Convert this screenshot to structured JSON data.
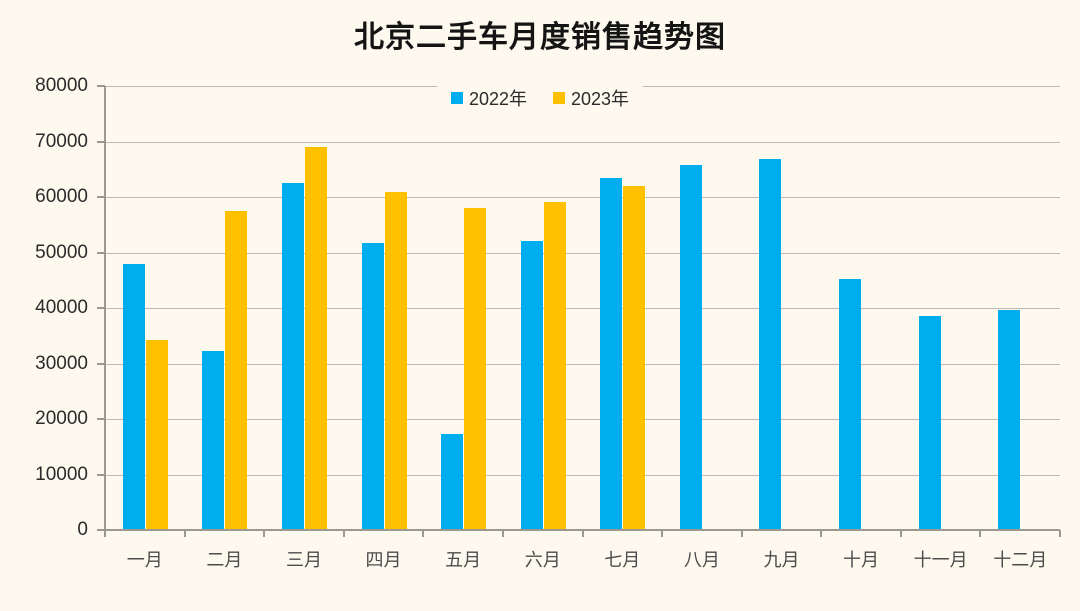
{
  "page": {
    "background_color": "#FDF9EE"
  },
  "chart_data": {
    "type": "bar",
    "title": "北京二手车月度销售趋势图",
    "categories": [
      "一月",
      "二月",
      "三月",
      "四月",
      "五月",
      "六月",
      "七月",
      "八月",
      "九月",
      "十月",
      "十一月",
      "十二月"
    ],
    "series": [
      {
        "name": "2022年",
        "color": "#00AEEF",
        "values": [
          48000,
          32300,
          62600,
          51700,
          17300,
          52000,
          63400,
          65800,
          66900,
          45200,
          38600,
          39700
        ]
      },
      {
        "name": "2023年",
        "color": "#FFC000",
        "values": [
          34200,
          57400,
          69100,
          60900,
          58000,
          59100,
          62000,
          null,
          null,
          null,
          null,
          null
        ]
      }
    ],
    "xlabel": "",
    "ylabel": "",
    "ylim": [
      0,
      80000
    ],
    "y_tick_step": 10000,
    "y_tick_labels": [
      "0",
      "10000",
      "20000",
      "30000",
      "40000",
      "50000",
      "60000",
      "70000",
      "80000"
    ],
    "grid": true,
    "legend_position": "top-center",
    "plot_background": "#FDF9EE",
    "gridline_color": "#bcb9b2",
    "axis_color": "#9b988f"
  }
}
